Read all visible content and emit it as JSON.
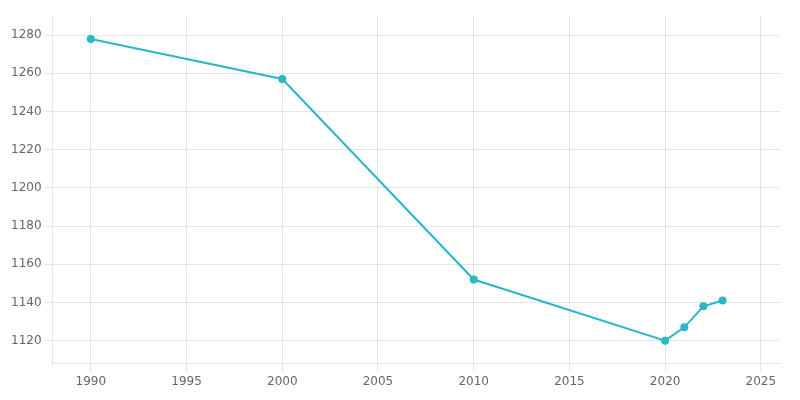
{
  "chart_data": {
    "type": "line",
    "x": [
      1990,
      2000,
      2010,
      2020,
      2021,
      2022,
      2023
    ],
    "values": [
      1278,
      1257,
      1152,
      1120,
      1127,
      1138,
      1141
    ],
    "color": "#2ab8c5",
    "marker": "circle",
    "xlim": [
      1988,
      2026
    ],
    "ylim": [
      1108,
      1290
    ],
    "xticks": [
      1990,
      1995,
      2000,
      2005,
      2010,
      2015,
      2020,
      2025
    ],
    "yticks": [
      1120,
      1140,
      1160,
      1180,
      1200,
      1220,
      1240,
      1260,
      1280
    ],
    "grid": true
  }
}
